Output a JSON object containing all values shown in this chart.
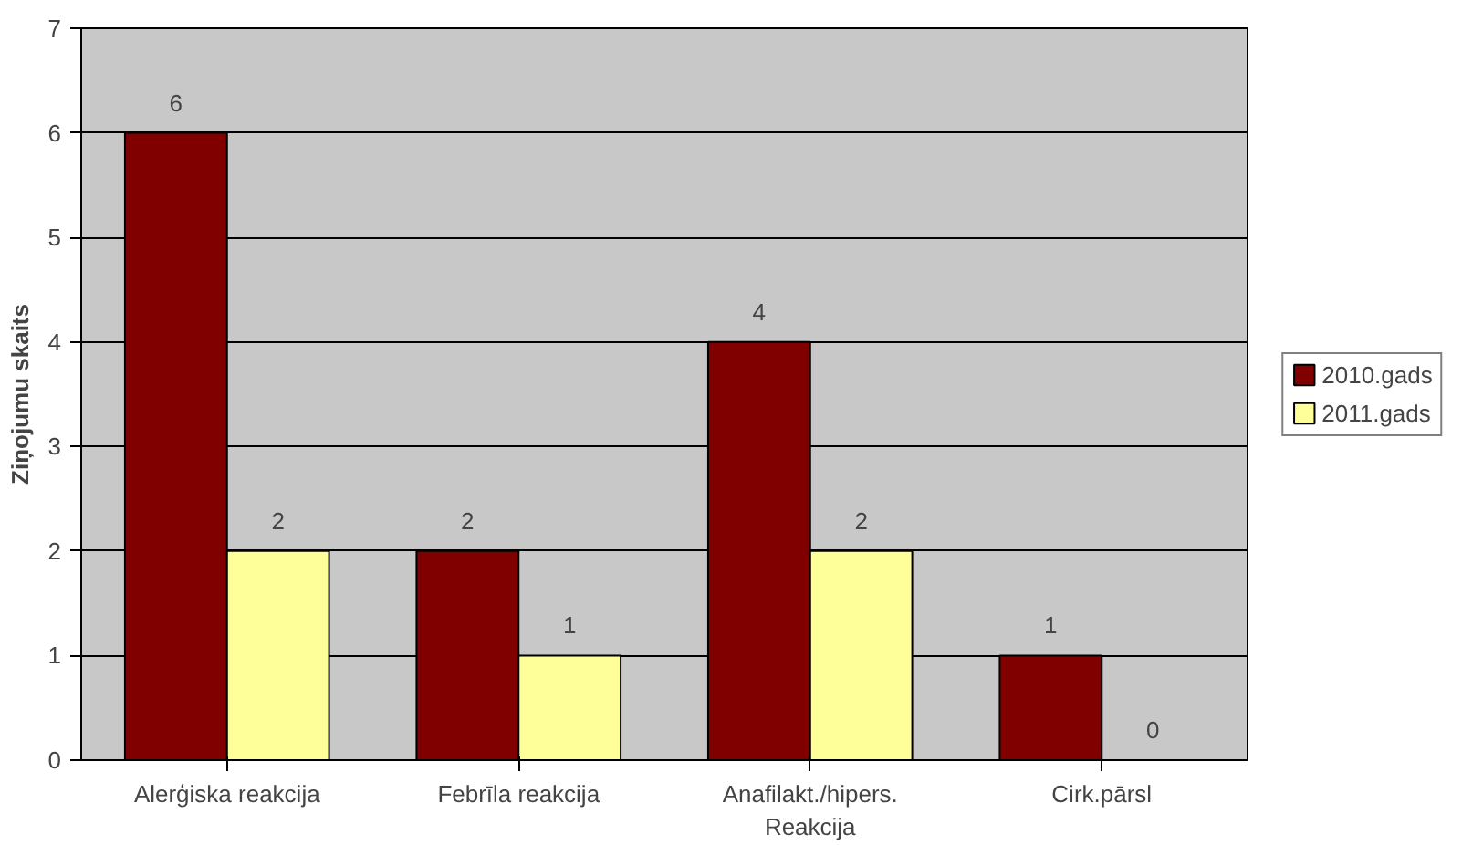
{
  "chart_data": {
    "type": "bar",
    "ylabel": "Ziņojumu skaits",
    "categories": [
      "Alerģiska reakcija",
      "Febrīla reakcija",
      "Anafilakt./hipers.\nReakcija",
      "Cirk.pārsl"
    ],
    "series": [
      {
        "name": "2010.gads",
        "color": "#800000",
        "values": [
          6,
          2,
          4,
          1
        ]
      },
      {
        "name": "2011.gads",
        "color": "#ffff99",
        "values": [
          2,
          1,
          2,
          0
        ]
      }
    ],
    "ylim": [
      0,
      7
    ],
    "yticks": [
      0,
      1,
      2,
      3,
      4,
      5,
      6,
      7
    ],
    "grid": "y",
    "legend": "right",
    "data_labels": true
  }
}
